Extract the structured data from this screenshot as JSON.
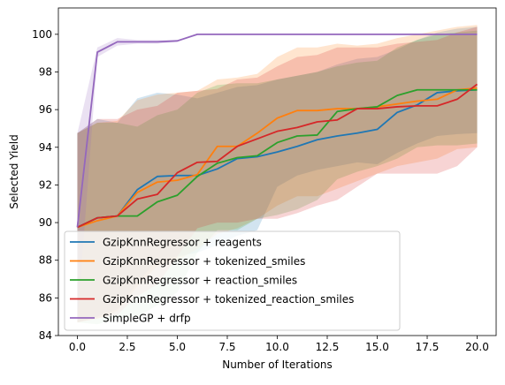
{
  "chart_data": {
    "type": "line",
    "title": "",
    "xlabel": "Number of Iterations",
    "ylabel": "Selected Yield",
    "xlim": [
      -0.95,
      20.95
    ],
    "ylim": [
      84.0,
      101.4
    ],
    "xticks": [
      0.0,
      2.5,
      5.0,
      7.5,
      10.0,
      12.5,
      15.0,
      17.5,
      20.0
    ],
    "xtick_labels": [
      "0.0",
      "2.5",
      "5.0",
      "7.5",
      "10.0",
      "12.5",
      "15.0",
      "17.5",
      "20.0"
    ],
    "yticks": [
      84,
      86,
      88,
      90,
      92,
      94,
      96,
      98,
      100
    ],
    "ytick_labels": [
      "84",
      "86",
      "88",
      "90",
      "92",
      "94",
      "96",
      "98",
      "100"
    ],
    "legend_position": "lower-left",
    "grid": false,
    "x": [
      0,
      1,
      2,
      3,
      4,
      5,
      6,
      7,
      8,
      9,
      10,
      11,
      12,
      13,
      14,
      15,
      16,
      17,
      18,
      19,
      20
    ],
    "series": [
      {
        "name": "GzipKnnRegressor + reagents",
        "color": "#1f77b4",
        "mean": [
          89.75,
          90.25,
          90.35,
          91.75,
          92.45,
          92.5,
          92.5,
          92.85,
          93.4,
          93.5,
          93.75,
          94.05,
          94.4,
          94.6,
          94.75,
          94.95,
          95.85,
          96.25,
          96.9,
          97.0,
          97.05
        ],
        "lower": [
          84.7,
          85.0,
          85.4,
          86.8,
          88.0,
          88.2,
          88.4,
          88.8,
          89.3,
          89.6,
          91.9,
          92.5,
          92.8,
          93.0,
          93.2,
          93.1,
          93.7,
          94.2,
          94.6,
          94.7,
          94.75
        ],
        "upper": [
          94.75,
          95.5,
          95.3,
          96.6,
          96.9,
          96.8,
          96.6,
          96.9,
          97.2,
          97.3,
          97.6,
          97.8,
          98.0,
          98.4,
          98.7,
          98.8,
          99.2,
          99.7,
          100.1,
          100.3,
          100.4
        ]
      },
      {
        "name": "GzipKnnRegressor + tokenized_smiles",
        "color": "#ff7f0e",
        "mean": [
          89.75,
          90.1,
          90.35,
          91.6,
          92.15,
          92.25,
          92.55,
          94.05,
          94.05,
          94.75,
          95.55,
          95.95,
          95.95,
          96.05,
          96.05,
          96.15,
          96.3,
          96.45,
          96.55,
          97.05,
          97.15
        ],
        "lower": [
          84.7,
          84.9,
          85.3,
          86.6,
          87.7,
          88.0,
          88.6,
          89.4,
          89.7,
          90.2,
          90.9,
          91.4,
          91.4,
          91.8,
          92.2,
          92.6,
          93.0,
          93.2,
          93.4,
          93.9,
          94.0
        ],
        "upper": [
          94.75,
          95.3,
          95.4,
          96.5,
          96.8,
          96.9,
          97.0,
          97.6,
          97.7,
          97.9,
          98.8,
          99.3,
          99.3,
          99.5,
          99.4,
          99.5,
          99.8,
          100.0,
          100.2,
          100.4,
          100.5
        ]
      },
      {
        "name": "GzipKnnRegressor + reaction_smiles",
        "color": "#2ca02c",
        "mean": [
          89.75,
          90.25,
          90.35,
          90.35,
          91.1,
          91.45,
          92.45,
          93.15,
          93.45,
          93.55,
          94.25,
          94.6,
          94.65,
          95.9,
          96.05,
          96.15,
          96.75,
          97.05,
          97.05,
          97.05,
          97.05
        ],
        "lower": [
          84.7,
          84.6,
          84.9,
          85.0,
          85.6,
          86.3,
          88.4,
          89.6,
          89.6,
          90.2,
          90.4,
          90.7,
          91.2,
          92.3,
          92.7,
          93.0,
          93.4,
          94.0,
          94.1,
          94.1,
          94.2
        ],
        "upper": [
          94.75,
          95.3,
          95.3,
          95.1,
          95.7,
          96.0,
          96.9,
          97.3,
          97.4,
          97.4,
          97.6,
          97.8,
          98.0,
          98.3,
          98.5,
          98.6,
          99.3,
          99.7,
          100.0,
          100.1,
          100.2
        ]
      },
      {
        "name": "GzipKnnRegressor + tokenized_reaction_smiles",
        "color": "#d62728",
        "mean": [
          89.75,
          90.25,
          90.35,
          91.25,
          91.5,
          92.65,
          93.2,
          93.25,
          94.05,
          94.45,
          94.85,
          95.05,
          95.35,
          95.45,
          96.05,
          96.05,
          96.15,
          96.2,
          96.2,
          96.55,
          97.35
        ],
        "lower": [
          84.7,
          84.9,
          85.1,
          86.1,
          86.7,
          88.2,
          89.7,
          90.0,
          90.0,
          90.2,
          90.2,
          90.5,
          90.9,
          91.2,
          91.9,
          92.6,
          92.6,
          92.6,
          92.6,
          93.0,
          94.0
        ],
        "upper": [
          94.75,
          95.5,
          95.5,
          96.0,
          96.2,
          96.9,
          97.0,
          97.1,
          97.6,
          97.7,
          98.3,
          98.8,
          98.9,
          99.3,
          99.3,
          99.3,
          99.5,
          99.6,
          99.7,
          100.1,
          100.4
        ]
      },
      {
        "name": "SimpleGP + drfp",
        "color": "#9467bd",
        "mean": [
          89.75,
          99.05,
          99.6,
          99.6,
          99.6,
          99.65,
          100.0,
          100.0,
          100.0,
          100.0,
          100.0,
          100.0,
          100.0,
          100.0,
          100.0,
          100.0,
          100.0,
          100.0,
          100.0,
          100.0,
          100.0
        ],
        "lower": [
          84.7,
          98.8,
          99.4,
          99.5,
          99.5,
          99.6,
          100.0,
          100.0,
          100.0,
          100.0,
          100.0,
          100.0,
          100.0,
          100.0,
          100.0,
          100.0,
          100.0,
          100.0,
          100.0,
          100.0,
          100.0
        ],
        "upper": [
          94.75,
          99.3,
          99.8,
          99.7,
          99.7,
          99.7,
          100.0,
          100.0,
          100.0,
          100.0,
          100.0,
          100.0,
          100.0,
          100.0,
          100.0,
          100.0,
          100.0,
          100.0,
          100.0,
          100.0,
          100.0
        ]
      }
    ]
  }
}
